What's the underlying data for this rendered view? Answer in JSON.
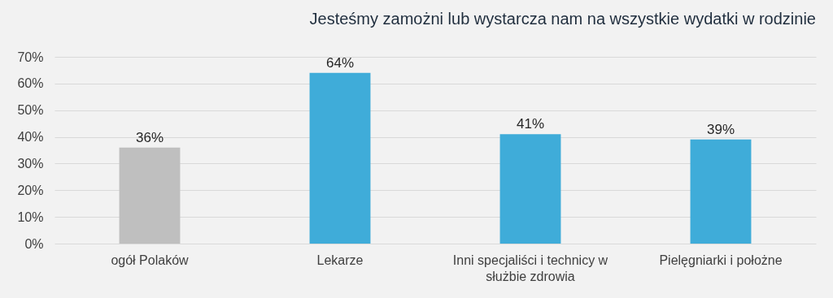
{
  "chart_data": {
    "type": "bar",
    "title": "Jesteśmy zamożni lub wystarcza nam na wszystkie wydatki w rodzinie",
    "categories": [
      "ogół Polaków",
      "Lekarze",
      "Inni specjaliści i technicy w służbie zdrowia",
      "Pielęgniarki i położne"
    ],
    "values": [
      36,
      64,
      41,
      39
    ],
    "colors": [
      "#bfbfbf",
      "#3facd9",
      "#3facd9",
      "#3facd9"
    ],
    "value_labels": [
      "36%",
      "64%",
      "41%",
      "39%"
    ],
    "ylim": [
      0,
      70
    ],
    "yticks": [
      {
        "value": 0,
        "label": "0%"
      },
      {
        "value": 10,
        "label": "10%"
      },
      {
        "value": 20,
        "label": "20%"
      },
      {
        "value": 30,
        "label": "30%"
      },
      {
        "value": 40,
        "label": "40%"
      },
      {
        "value": 50,
        "label": "50%"
      },
      {
        "value": 60,
        "label": "60%"
      },
      {
        "value": 70,
        "label": "70%"
      }
    ],
    "grid": "y",
    "legend": false
  }
}
